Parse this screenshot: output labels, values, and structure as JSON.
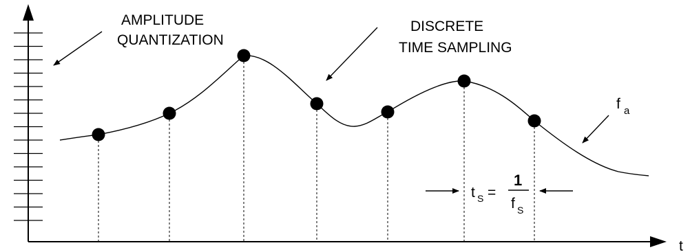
{
  "labels": {
    "amplitude_line1": "AMPLITUDE",
    "amplitude_line2": "QUANTIZATION",
    "discrete_line1": "DISCRETE",
    "discrete_line2": "TIME SAMPLING",
    "signal_main": "f",
    "signal_sub": "a",
    "time_axis": "t"
  },
  "formula": {
    "lhs_main": "t",
    "lhs_sub": "S",
    "equals": "=",
    "numerator": "1",
    "denominator_main": "f",
    "denominator_sub": "S"
  },
  "colors": {
    "ink": "#000000",
    "background": "#ffffff"
  }
}
